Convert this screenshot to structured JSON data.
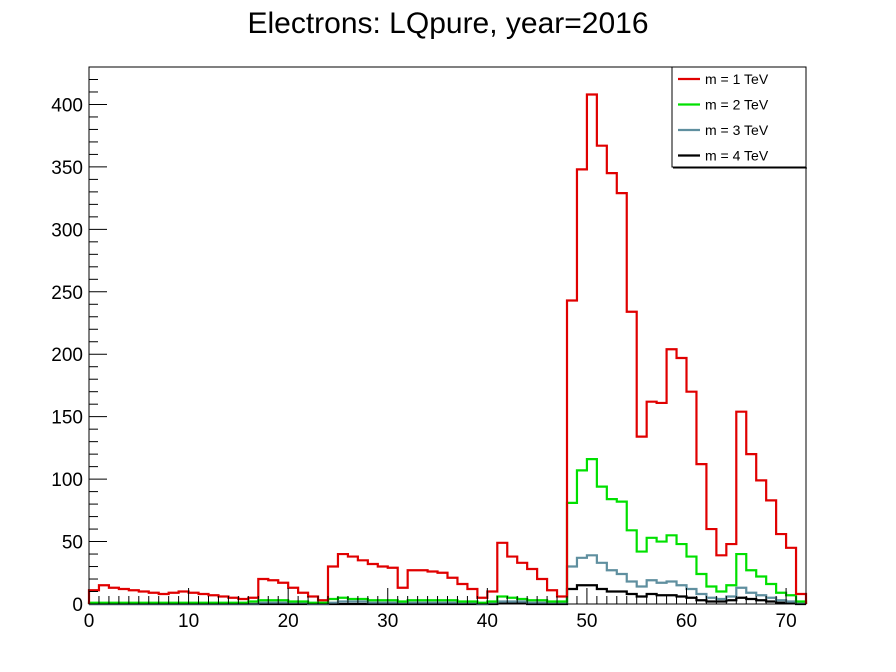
{
  "chart_data": {
    "type": "line",
    "title": "Electrons: LQpure, year=2016",
    "xlabel": "",
    "ylabel": "",
    "xlim": [
      0,
      72
    ],
    "ylim": [
      0,
      430
    ],
    "xticks": [
      0,
      10,
      20,
      30,
      40,
      50,
      60,
      70
    ],
    "yticks": [
      0,
      50,
      100,
      150,
      200,
      250,
      300,
      350,
      400
    ],
    "grid": false,
    "legend_position": "top-right",
    "bin_width": 1,
    "series": [
      {
        "name": "m = 1 TeV",
        "color": "#e00000",
        "values": [
          11,
          15,
          13,
          12,
          11,
          10,
          9,
          8,
          9,
          10,
          9,
          8,
          7,
          6,
          5,
          4,
          5,
          20,
          19,
          17,
          13,
          9,
          6,
          3,
          30,
          40,
          38,
          35,
          32,
          30,
          29,
          13,
          27,
          27,
          26,
          25,
          21,
          16,
          12,
          5,
          10,
          49,
          38,
          33,
          28,
          20,
          11,
          6,
          243,
          348,
          408,
          367,
          345,
          329,
          234,
          134,
          162,
          161,
          204,
          197,
          170,
          112,
          60,
          39,
          48,
          154,
          120,
          99,
          83,
          56,
          45,
          8
        ]
      },
      {
        "name": "m = 2 TeV",
        "color": "#00e000",
        "values": [
          1,
          1,
          1,
          1,
          1,
          1,
          1,
          1,
          1,
          1,
          1,
          1,
          1,
          1,
          1,
          1,
          2,
          3,
          3,
          3,
          2,
          2,
          1,
          1,
          4,
          5,
          4,
          4,
          3,
          3,
          3,
          2,
          3,
          3,
          3,
          3,
          3,
          2,
          2,
          1,
          2,
          6,
          5,
          4,
          3,
          3,
          2,
          2,
          81,
          107,
          116,
          94,
          84,
          82,
          59,
          42,
          53,
          50,
          55,
          48,
          38,
          24,
          14,
          10,
          15,
          40,
          27,
          22,
          16,
          9,
          7,
          2
        ]
      },
      {
        "name": "m = 3 TeV",
        "color": "#5f8f9f",
        "values": [
          0,
          0,
          0,
          0,
          0,
          0,
          0,
          0,
          0,
          0,
          0,
          0,
          0,
          0,
          0,
          0,
          0,
          1,
          1,
          1,
          1,
          1,
          0,
          0,
          1,
          2,
          2,
          2,
          1,
          1,
          1,
          1,
          1,
          1,
          1,
          1,
          1,
          1,
          1,
          0,
          1,
          2,
          2,
          2,
          1,
          1,
          1,
          1,
          30,
          37,
          39,
          33,
          27,
          24,
          18,
          14,
          19,
          17,
          18,
          15,
          12,
          8,
          5,
          4,
          6,
          13,
          9,
          7,
          5,
          3,
          2,
          1
        ]
      },
      {
        "name": "m = 4 TeV",
        "color": "#000000",
        "values": [
          0,
          0,
          0,
          0,
          0,
          0,
          0,
          0,
          0,
          0,
          0,
          0,
          0,
          0,
          0,
          0,
          0,
          0,
          0,
          0,
          0,
          0,
          0,
          0,
          0,
          0,
          0,
          0,
          0,
          0,
          0,
          0,
          0,
          0,
          0,
          0,
          0,
          0,
          0,
          0,
          0,
          1,
          1,
          1,
          0,
          0,
          0,
          0,
          12,
          15,
          15,
          12,
          10,
          10,
          8,
          6,
          8,
          7,
          7,
          6,
          5,
          3,
          2,
          2,
          3,
          5,
          4,
          3,
          2,
          1,
          1,
          0
        ]
      }
    ]
  }
}
